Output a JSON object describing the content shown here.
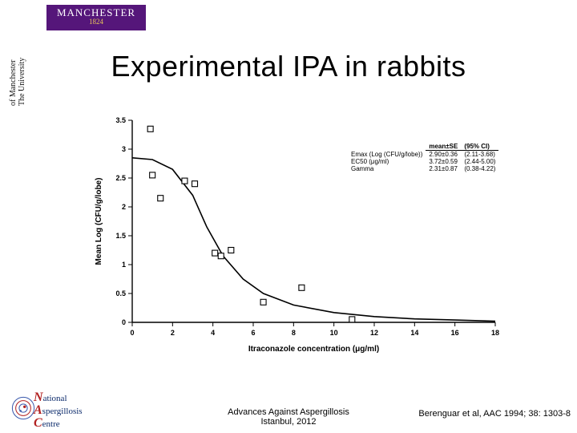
{
  "logo": {
    "line1": "MANCHESTER",
    "line2": "1824",
    "bg": "#55167a",
    "year_color": "#e8c558"
  },
  "uni_vertical": {
    "l1": "The University",
    "l2": "of Manchester"
  },
  "title": "Experimental IPA in rabbits",
  "chart": {
    "type": "scatter+line",
    "xlabel": "Itraconazole concentration (μg/ml)",
    "ylabel": "Mean Log (CFU/g/lobe)",
    "label_fontsize": 10,
    "tick_fontsize": 9,
    "xlim": [
      0,
      18
    ],
    "ylim": [
      0,
      3.5
    ],
    "xtick_step": 2,
    "ytick_step": 0.5,
    "xticks": [
      0,
      2,
      4,
      6,
      8,
      10,
      12,
      14,
      16,
      18
    ],
    "yticks": [
      0,
      0.5,
      1,
      1.5,
      2,
      2.5,
      3,
      3.5
    ],
    "background_color": "#ffffff",
    "axis_color": "#000000",
    "curve_color": "#000000",
    "curve_width": 1.6,
    "marker_style": "open-square",
    "marker_size": 7,
    "marker_color": "#000000",
    "points": [
      {
        "x": 0.9,
        "y": 3.35
      },
      {
        "x": 1.0,
        "y": 2.55
      },
      {
        "x": 1.4,
        "y": 2.15
      },
      {
        "x": 2.6,
        "y": 2.45
      },
      {
        "x": 3.1,
        "y": 2.4
      },
      {
        "x": 4.1,
        "y": 1.2
      },
      {
        "x": 4.4,
        "y": 1.15
      },
      {
        "x": 4.9,
        "y": 1.25
      },
      {
        "x": 6.5,
        "y": 0.35
      },
      {
        "x": 8.4,
        "y": 0.6
      },
      {
        "x": 10.9,
        "y": 0.05
      }
    ],
    "curve": [
      {
        "x": 0.0,
        "y": 2.85
      },
      {
        "x": 1.0,
        "y": 2.82
      },
      {
        "x": 2.0,
        "y": 2.65
      },
      {
        "x": 3.0,
        "y": 2.2
      },
      {
        "x": 3.7,
        "y": 1.65
      },
      {
        "x": 4.5,
        "y": 1.15
      },
      {
        "x": 5.5,
        "y": 0.75
      },
      {
        "x": 6.5,
        "y": 0.5
      },
      {
        "x": 8.0,
        "y": 0.3
      },
      {
        "x": 10.0,
        "y": 0.17
      },
      {
        "x": 12.0,
        "y": 0.1
      },
      {
        "x": 14.0,
        "y": 0.06
      },
      {
        "x": 16.0,
        "y": 0.04
      },
      {
        "x": 18.0,
        "y": 0.02
      }
    ]
  },
  "stats": {
    "header": [
      "",
      "mean±SE",
      "(95% CI)"
    ],
    "rows": [
      [
        "Emax (Log (CFU/g/lobe))",
        "2.90±0.36",
        "(2.11-3.68)"
      ],
      [
        "EC50 (μg/ml)",
        "3.72±0.59",
        "(2.44-5.00)"
      ],
      [
        "Gamma",
        "2.31±0.87",
        "(0.38-4.22)"
      ]
    ]
  },
  "footer": {
    "center_l1": "Advances Against Aspergillosis",
    "center_l2": "Istanbul, 2012",
    "right": "Berenguar et al, AAC 1994; 38: 1303-8"
  },
  "nac": {
    "l1": "ational",
    "l2": "spergillosis",
    "l3": "entre",
    "c1": "N",
    "c2": "A",
    "c3": "C"
  }
}
